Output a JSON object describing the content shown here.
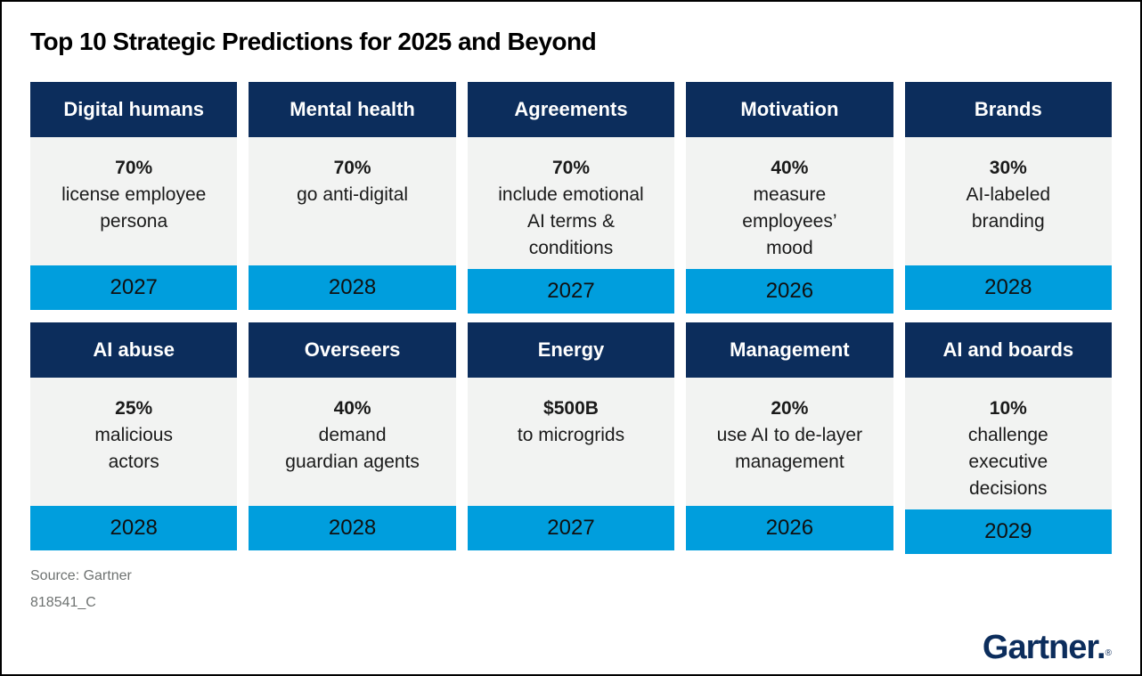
{
  "page": {
    "title": "Top 10 Strategic Predictions for 2025 and Beyond",
    "source": "Source: Gartner",
    "doc_id": "818541_C"
  },
  "brand": {
    "logo_text": "Gartner.",
    "registered_mark": "®"
  },
  "colors": {
    "navy": "#0c2d5c",
    "cyan": "#009edd",
    "card_body_bg": "#f2f3f2",
    "source_text": "#6e7271"
  },
  "chart_data": {
    "type": "table",
    "title": "Top 10 Strategic Predictions for 2025 and Beyond",
    "columns": [
      "category",
      "stat",
      "prediction",
      "year"
    ],
    "rows": [
      [
        "Digital humans",
        "70%",
        "license employee persona",
        "2027"
      ],
      [
        "Mental health",
        "70%",
        "go anti-digital",
        "2028"
      ],
      [
        "Agreements",
        "70%",
        "include emotional AI terms & conditions",
        "2027"
      ],
      [
        "Motivation",
        "40%",
        "measure employees’ mood",
        "2026"
      ],
      [
        "Brands",
        "30%",
        "AI-labeled branding",
        "2028"
      ],
      [
        "AI abuse",
        "25%",
        "malicious actors",
        "2028"
      ],
      [
        "Overseers",
        "40%",
        "demand guardian agents",
        "2028"
      ],
      [
        "Energy",
        "$500B",
        "to microgrids",
        "2027"
      ],
      [
        "Management",
        "20%",
        "use AI to de-layer management",
        "2026"
      ],
      [
        "AI and boards",
        "10%",
        "challenge executive decisions",
        "2029"
      ]
    ],
    "layout": "2 rows × 5 card grid; each card: navy category header, gray body with bold stat + prediction, cyan footer with year"
  },
  "cards": [
    {
      "title": "Digital humans",
      "stat": "70%",
      "description": [
        "license employee",
        "persona"
      ],
      "year": "2027"
    },
    {
      "title": "Mental health",
      "stat": "70%",
      "description": [
        "go anti-digital"
      ],
      "year": "2028"
    },
    {
      "title": "Agreements",
      "stat": "70%",
      "description": [
        "include emotional",
        "AI terms &",
        "conditions"
      ],
      "year": "2027"
    },
    {
      "title": "Motivation",
      "stat": "40%",
      "description": [
        "measure",
        "employees’",
        "mood"
      ],
      "year": "2026"
    },
    {
      "title": "Brands",
      "stat": "30%",
      "description": [
        "AI-labeled",
        "branding"
      ],
      "year": "2028"
    },
    {
      "title": "AI abuse",
      "stat": "25%",
      "description": [
        "malicious",
        "actors"
      ],
      "year": "2028"
    },
    {
      "title": "Overseers",
      "stat": "40%",
      "description": [
        "demand",
        "guardian agents"
      ],
      "year": "2028"
    },
    {
      "title": "Energy",
      "stat": "$500B",
      "description": [
        "to microgrids"
      ],
      "year": "2027"
    },
    {
      "title": "Management",
      "stat": "20%",
      "description": [
        "use AI to de-layer",
        "management"
      ],
      "year": "2026"
    },
    {
      "title": "AI and boards",
      "stat": "10%",
      "description": [
        "challenge",
        "executive",
        "decisions"
      ],
      "year": "2029"
    }
  ]
}
